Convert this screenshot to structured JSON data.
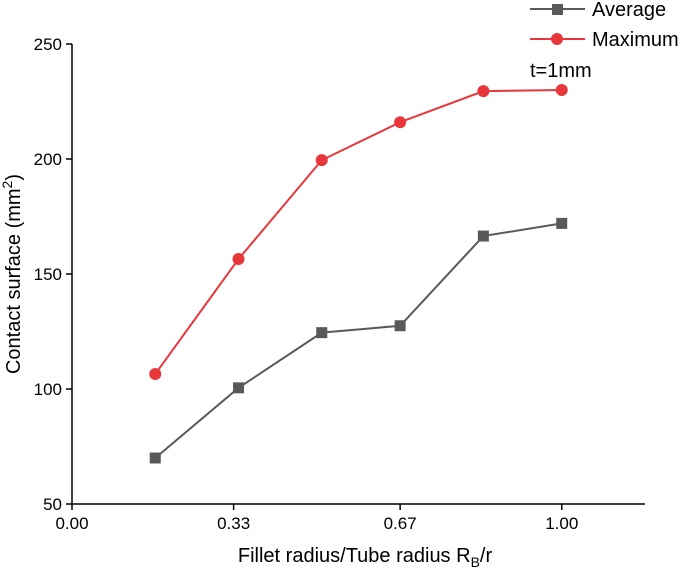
{
  "chart_data": {
    "type": "line",
    "xlabel": "Fillet radius/Tube radius R",
    "xlabel_sub": "B",
    "xlabel_suffix": "/r",
    "ylabel": "Contact surface (mm",
    "ylabel_sup": "2",
    "ylabel_suffix": ")",
    "xlim": [
      0,
      1.17
    ],
    "ylim": [
      50,
      250
    ],
    "xticks": [
      0,
      0.33,
      0.67,
      1.0
    ],
    "xtick_labels": [
      "0.00",
      "0.33",
      "0.67",
      "1.00"
    ],
    "yticks": [
      50,
      100,
      150,
      200,
      250
    ],
    "ytick_labels": [
      "50",
      "100",
      "150",
      "200",
      "250"
    ],
    "annotation": "t=1mm",
    "legend_position": "top-right",
    "grid": false,
    "series": [
      {
        "name": "Average",
        "color": "#595959",
        "marker": "square",
        "x": [
          0.17,
          0.34,
          0.51,
          0.67,
          0.84,
          1.0
        ],
        "y": [
          70,
          100.5,
          124.5,
          127.5,
          166.5,
          172
        ]
      },
      {
        "name": "Maximum",
        "color": "#e8373a",
        "marker": "circle",
        "x": [
          0.17,
          0.34,
          0.51,
          0.67,
          0.84,
          1.0
        ],
        "y": [
          106.5,
          156.5,
          199.5,
          216,
          229.5,
          230
        ]
      }
    ]
  }
}
